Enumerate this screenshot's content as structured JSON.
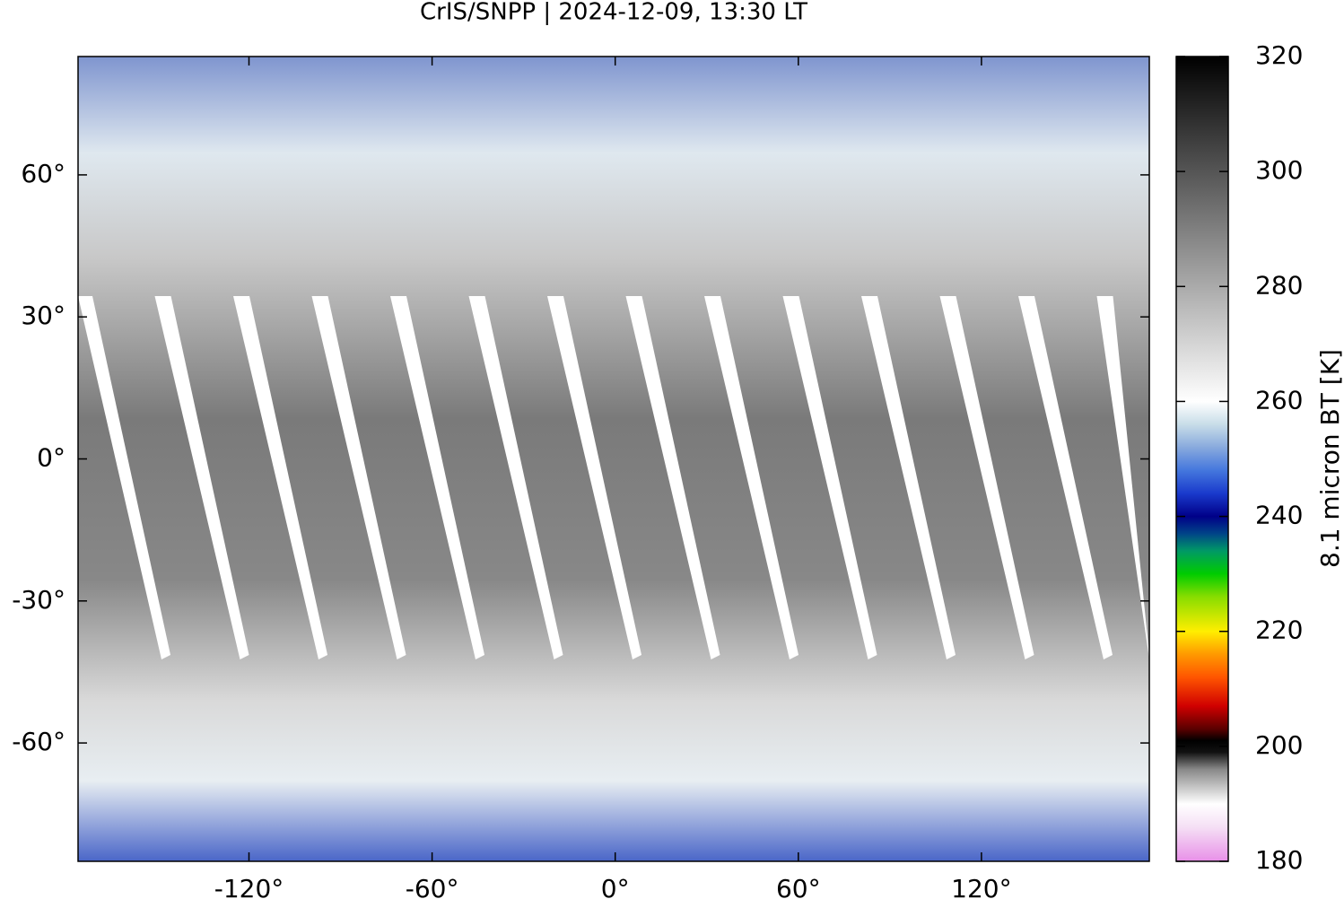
{
  "chart_data": {
    "type": "heatmap",
    "title": "CrIS/SNPP | 2024-12-09, 13:30 LT",
    "colorbar_label": "8.1 micron BT [K]",
    "xlim": [
      -176,
      175
    ],
    "ylim": [
      -85,
      85
    ],
    "xticks": [
      {
        "value": -120,
        "label": "-120°"
      },
      {
        "value": -60,
        "label": "-60°"
      },
      {
        "value": 0,
        "label": "0°"
      },
      {
        "value": 60,
        "label": "60°"
      },
      {
        "value": 120,
        "label": "120°"
      }
    ],
    "yticks": [
      {
        "value": 60,
        "label": "60°"
      },
      {
        "value": 30,
        "label": "30°"
      },
      {
        "value": 0,
        "label": "0°"
      },
      {
        "value": -30,
        "label": "-30°"
      },
      {
        "value": -60,
        "label": "-60°"
      }
    ],
    "clim": [
      180,
      320
    ],
    "cticks": [
      180,
      200,
      220,
      240,
      260,
      280,
      300,
      320
    ],
    "colormap": [
      {
        "value": 180,
        "color": "#e890e8"
      },
      {
        "value": 186,
        "color": "#f5e0f5"
      },
      {
        "value": 190,
        "color": "#ffffff"
      },
      {
        "value": 196,
        "color": "#888888"
      },
      {
        "value": 199,
        "color": "#111111"
      },
      {
        "value": 201,
        "color": "#000000"
      },
      {
        "value": 203,
        "color": "#5a0000"
      },
      {
        "value": 207,
        "color": "#d00000"
      },
      {
        "value": 212,
        "color": "#ff5500"
      },
      {
        "value": 216,
        "color": "#ff9900"
      },
      {
        "value": 220,
        "color": "#ffee00"
      },
      {
        "value": 226,
        "color": "#88dd00"
      },
      {
        "value": 230,
        "color": "#00cc00"
      },
      {
        "value": 234,
        "color": "#009966"
      },
      {
        "value": 237,
        "color": "#004488"
      },
      {
        "value": 240,
        "color": "#000088"
      },
      {
        "value": 244,
        "color": "#1a3acc"
      },
      {
        "value": 248,
        "color": "#4477dd"
      },
      {
        "value": 252,
        "color": "#88aadd"
      },
      {
        "value": 256,
        "color": "#c8dde8"
      },
      {
        "value": 260,
        "color": "#ffffff"
      },
      {
        "value": 320,
        "color": "#000000"
      }
    ]
  }
}
